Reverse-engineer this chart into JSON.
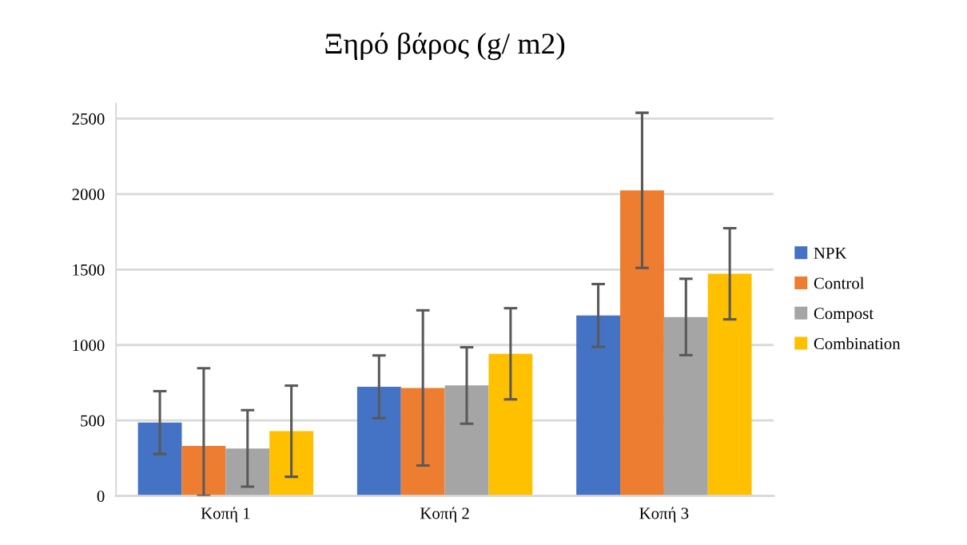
{
  "chart_data": {
    "type": "bar",
    "title": "Ξηρό βάρος (g/ m2)",
    "categories": [
      "Κοπή 1",
      "Κοπή 2",
      "Κοπή 3"
    ],
    "series": [
      {
        "name": "NPK",
        "color": "#4472c4",
        "values": [
          486,
          723,
          1196
        ],
        "errors": [
          208,
          208,
          208
        ]
      },
      {
        "name": "Control",
        "color": "#ed7d31",
        "values": [
          332,
          716,
          2025
        ],
        "errors": [
          [
            0,
            846
          ],
          514,
          514
        ]
      },
      {
        "name": "Compost",
        "color": "#a5a5a5",
        "values": [
          315,
          732,
          1186
        ],
        "errors": [
          253,
          253,
          253
        ]
      },
      {
        "name": "Combination",
        "color": "#ffc000",
        "values": [
          429,
          942,
          1472
        ],
        "errors": [
          302,
          302,
          302
        ]
      }
    ],
    "ylim": [
      0,
      2600
    ],
    "yticks": [
      0,
      500,
      1000,
      1500,
      2000,
      2500
    ],
    "grid": "y",
    "legend": "right"
  }
}
